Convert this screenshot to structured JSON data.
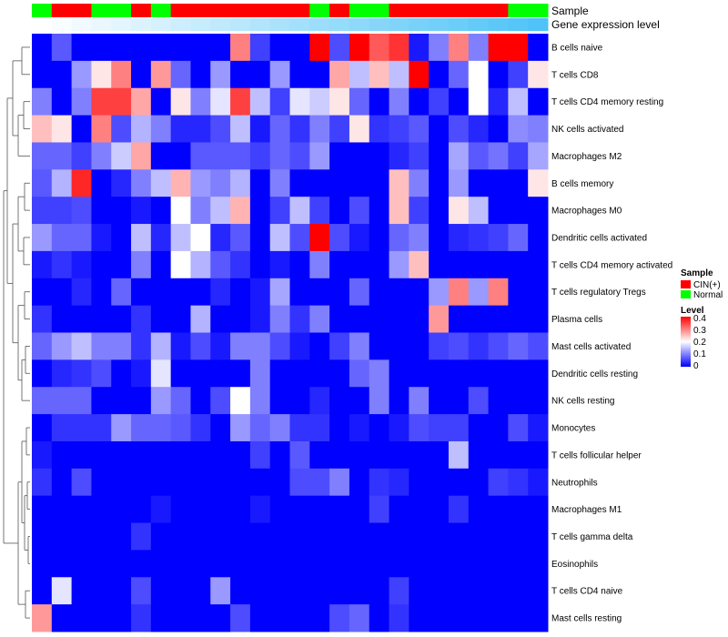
{
  "chart_data": {
    "type": "heatmap",
    "annotations": {
      "sample": {
        "label": "Sample",
        "values": [
          "Normal",
          "CIN(+)",
          "CIN(+)",
          "Normal",
          "Normal",
          "CIN(+)",
          "Normal",
          "CIN(+)",
          "CIN(+)",
          "CIN(+)",
          "CIN(+)",
          "CIN(+)",
          "CIN(+)",
          "CIN(+)",
          "Normal",
          "CIN(+)",
          "Normal",
          "Normal",
          "CIN(+)",
          "CIN(+)",
          "CIN(+)",
          "CIN(+)",
          "CIN(+)",
          "CIN(+)",
          "Normal",
          "Normal"
        ]
      },
      "expression": {
        "label": "Gene expression level",
        "values": [
          0,
          0.01,
          0.02,
          0.03,
          0.04,
          0.05,
          0.06,
          0.07,
          0.08,
          0.09,
          0.1,
          0.11,
          0.12,
          0.13,
          0.14,
          0.15,
          0.16,
          0.17,
          0.18,
          0.19,
          0.2,
          0.21,
          0.22,
          0.23,
          0.24,
          0.25
        ]
      }
    },
    "rows": [
      "B cells naive",
      "T cells CD8",
      "T cells CD4 memory resting",
      "NK cells activated",
      "Macrophages M2",
      "B cells memory",
      "Macrophages M0",
      "Dendritic cells activated",
      "T cells CD4 memory activated",
      "T cells regulatory  Tregs",
      "Plasma cells",
      "Mast cells activated",
      "Dendritic cells resting",
      "NK cells resting",
      "Monocytes",
      "T cells follicular helper",
      "Neutrophils",
      "Macrophages M1",
      "T cells gamma delta",
      "Eosinophils",
      "T cells CD4 naive",
      "Mast cells resting"
    ],
    "matrix": [
      [
        0,
        0.07,
        0,
        0,
        0,
        0,
        0,
        0,
        0,
        0,
        0.3,
        0.05,
        0,
        0,
        0.4,
        0.06,
        0.4,
        0.33,
        0.36,
        0.02,
        0.1,
        0.3,
        0.1,
        0.4,
        0.4,
        0
      ],
      [
        0,
        0,
        0.12,
        0.22,
        0.3,
        0,
        0.28,
        0.08,
        0,
        0.12,
        0,
        0,
        0.12,
        0,
        0,
        0.27,
        0.15,
        0.25,
        0.15,
        0.4,
        0,
        0.08,
        0.2,
        0,
        0.05,
        0.22
      ],
      [
        0.1,
        0,
        0.1,
        0.35,
        0.35,
        0.27,
        0,
        0.22,
        0.1,
        0.18,
        0.35,
        0.15,
        0.05,
        0.18,
        0.16,
        0.22,
        0.08,
        0,
        0.1,
        0,
        0.05,
        0,
        0.2,
        0.03,
        0.15,
        0
      ],
      [
        0.25,
        0.22,
        0,
        0.3,
        0.06,
        0.14,
        0.1,
        0.03,
        0.03,
        0.06,
        0.15,
        0.02,
        0.08,
        0.04,
        0.1,
        0.05,
        0.22,
        0.04,
        0.05,
        0.07,
        0,
        0.06,
        0.03,
        0,
        0.11,
        0.1
      ],
      [
        0.08,
        0.08,
        0.05,
        0.1,
        0.16,
        0.27,
        0,
        0,
        0.07,
        0.07,
        0.07,
        0.05,
        0.08,
        0.06,
        0.12,
        0,
        0,
        0,
        0.03,
        0.05,
        0,
        0.13,
        0.07,
        0.09,
        0.05,
        0.13
      ],
      [
        0.07,
        0.14,
        0.37,
        0,
        0.03,
        0.1,
        0.15,
        0.26,
        0.12,
        0.1,
        0.14,
        0,
        0.1,
        0,
        0,
        0,
        0,
        0,
        0.25,
        0.1,
        0,
        0.12,
        0,
        0,
        0,
        0.22
      ],
      [
        0.05,
        0.05,
        0.06,
        0,
        0,
        0.02,
        0,
        0.2,
        0.1,
        0.15,
        0.26,
        0,
        0.05,
        0.15,
        0.05,
        0,
        0.06,
        0,
        0.25,
        0.05,
        0,
        0.22,
        0.15,
        0,
        0,
        0
      ],
      [
        0.12,
        0.08,
        0.08,
        0.02,
        0,
        0.15,
        0.03,
        0.15,
        0.2,
        0.03,
        0.07,
        0,
        0.15,
        0.06,
        0.4,
        0.06,
        0.02,
        0,
        0.08,
        0.1,
        0,
        0.03,
        0.04,
        0.05,
        0.08,
        0
      ],
      [
        0.02,
        0.04,
        0.02,
        0,
        0,
        0.1,
        0,
        0.2,
        0.14,
        0.07,
        0.04,
        0,
        0.02,
        0,
        0.1,
        0,
        0,
        0,
        0.12,
        0.25,
        0,
        0,
        0,
        0,
        0,
        0
      ],
      [
        0,
        0,
        0.03,
        0,
        0.08,
        0,
        0,
        0,
        0,
        0.03,
        0,
        0.02,
        0.13,
        0,
        0,
        0,
        0.08,
        0,
        0,
        0,
        0.12,
        0.3,
        0.12,
        0.3,
        0,
        0
      ],
      [
        0.04,
        0,
        0,
        0,
        0,
        0.04,
        0,
        0,
        0.14,
        0,
        0,
        0.02,
        0.1,
        0.04,
        0.1,
        0,
        0,
        0,
        0,
        0,
        0.28,
        0,
        0,
        0,
        0,
        0
      ],
      [
        0.08,
        0.12,
        0.15,
        0.1,
        0.1,
        0.04,
        0.14,
        0.02,
        0.06,
        0.02,
        0.1,
        0.1,
        0.06,
        0.02,
        0,
        0.05,
        0.1,
        0,
        0,
        0,
        0.05,
        0.06,
        0.04,
        0.06,
        0.08,
        0.06
      ],
      [
        0,
        0.03,
        0.04,
        0.06,
        0,
        0.02,
        0.18,
        0,
        0,
        0,
        0,
        0.1,
        0,
        0,
        0,
        0,
        0.08,
        0.1,
        0,
        0,
        0,
        0,
        0,
        0,
        0,
        0
      ],
      [
        0.08,
        0.08,
        0.08,
        0,
        0,
        0,
        0.12,
        0.08,
        0,
        0.06,
        0.2,
        0.1,
        0,
        0,
        0.03,
        0,
        0,
        0.1,
        0,
        0.1,
        0,
        0,
        0.06,
        0,
        0,
        0
      ],
      [
        0,
        0.04,
        0.04,
        0.04,
        0.12,
        0.08,
        0.08,
        0.07,
        0.04,
        0,
        0.12,
        0.08,
        0.1,
        0.04,
        0.04,
        0,
        0.02,
        0,
        0.02,
        0.06,
        0.05,
        0.05,
        0,
        0,
        0.06,
        0.02
      ],
      [
        0.02,
        0,
        0,
        0,
        0,
        0,
        0,
        0,
        0,
        0,
        0,
        0.05,
        0,
        0.07,
        0,
        0,
        0,
        0,
        0,
        0,
        0,
        0.15,
        0,
        0,
        0,
        0
      ],
      [
        0.04,
        0,
        0.06,
        0,
        0,
        0,
        0,
        0,
        0,
        0,
        0,
        0,
        0,
        0.06,
        0.06,
        0.1,
        0,
        0.04,
        0.03,
        0,
        0,
        0,
        0,
        0.05,
        0.04,
        0.02
      ],
      [
        0,
        0,
        0,
        0,
        0,
        0,
        0.02,
        0,
        0,
        0,
        0,
        0.02,
        0,
        0,
        0,
        0,
        0,
        0.05,
        0,
        0,
        0,
        0.04,
        0,
        0,
        0,
        0
      ],
      [
        0,
        0,
        0,
        0,
        0,
        0.04,
        0,
        0,
        0,
        0,
        0,
        0,
        0,
        0,
        0,
        0,
        0,
        0,
        0,
        0,
        0,
        0,
        0,
        0,
        0,
        0
      ],
      [
        0,
        0,
        0,
        0,
        0,
        0,
        0,
        0,
        0,
        0,
        0,
        0,
        0,
        0,
        0,
        0,
        0,
        0,
        0,
        0,
        0,
        0,
        0,
        0,
        0,
        0
      ],
      [
        0,
        0.18,
        0,
        0,
        0,
        0.06,
        0,
        0,
        0,
        0.12,
        0,
        0,
        0,
        0,
        0,
        0,
        0,
        0,
        0.05,
        0,
        0,
        0,
        0,
        0,
        0,
        0
      ],
      [
        0.28,
        0,
        0,
        0,
        0,
        0.04,
        0,
        0,
        0,
        0,
        0.06,
        0,
        0,
        0,
        0,
        0.06,
        0.08,
        0,
        0.04,
        0,
        0,
        0,
        0,
        0,
        0,
        0
      ]
    ],
    "sample_colors": {
      "CIN(+)": "#ff0000",
      "Normal": "#00ff00"
    },
    "expression_gradient": [
      "#ffffff",
      "#4fc3f7"
    ],
    "level_colors": {
      "low": "#0000ff",
      "mid": "#ffffff",
      "high": "#ff0000"
    },
    "level_range": [
      0,
      0.4
    ],
    "legend": {
      "sample_title": "Sample",
      "sample_items": [
        "CIN(+)",
        "Normal"
      ],
      "level_title": "Level",
      "level_ticks": [
        "0.4",
        "0.3",
        "0.2",
        "0.1",
        "0"
      ]
    },
    "dendrogram": "rows"
  }
}
